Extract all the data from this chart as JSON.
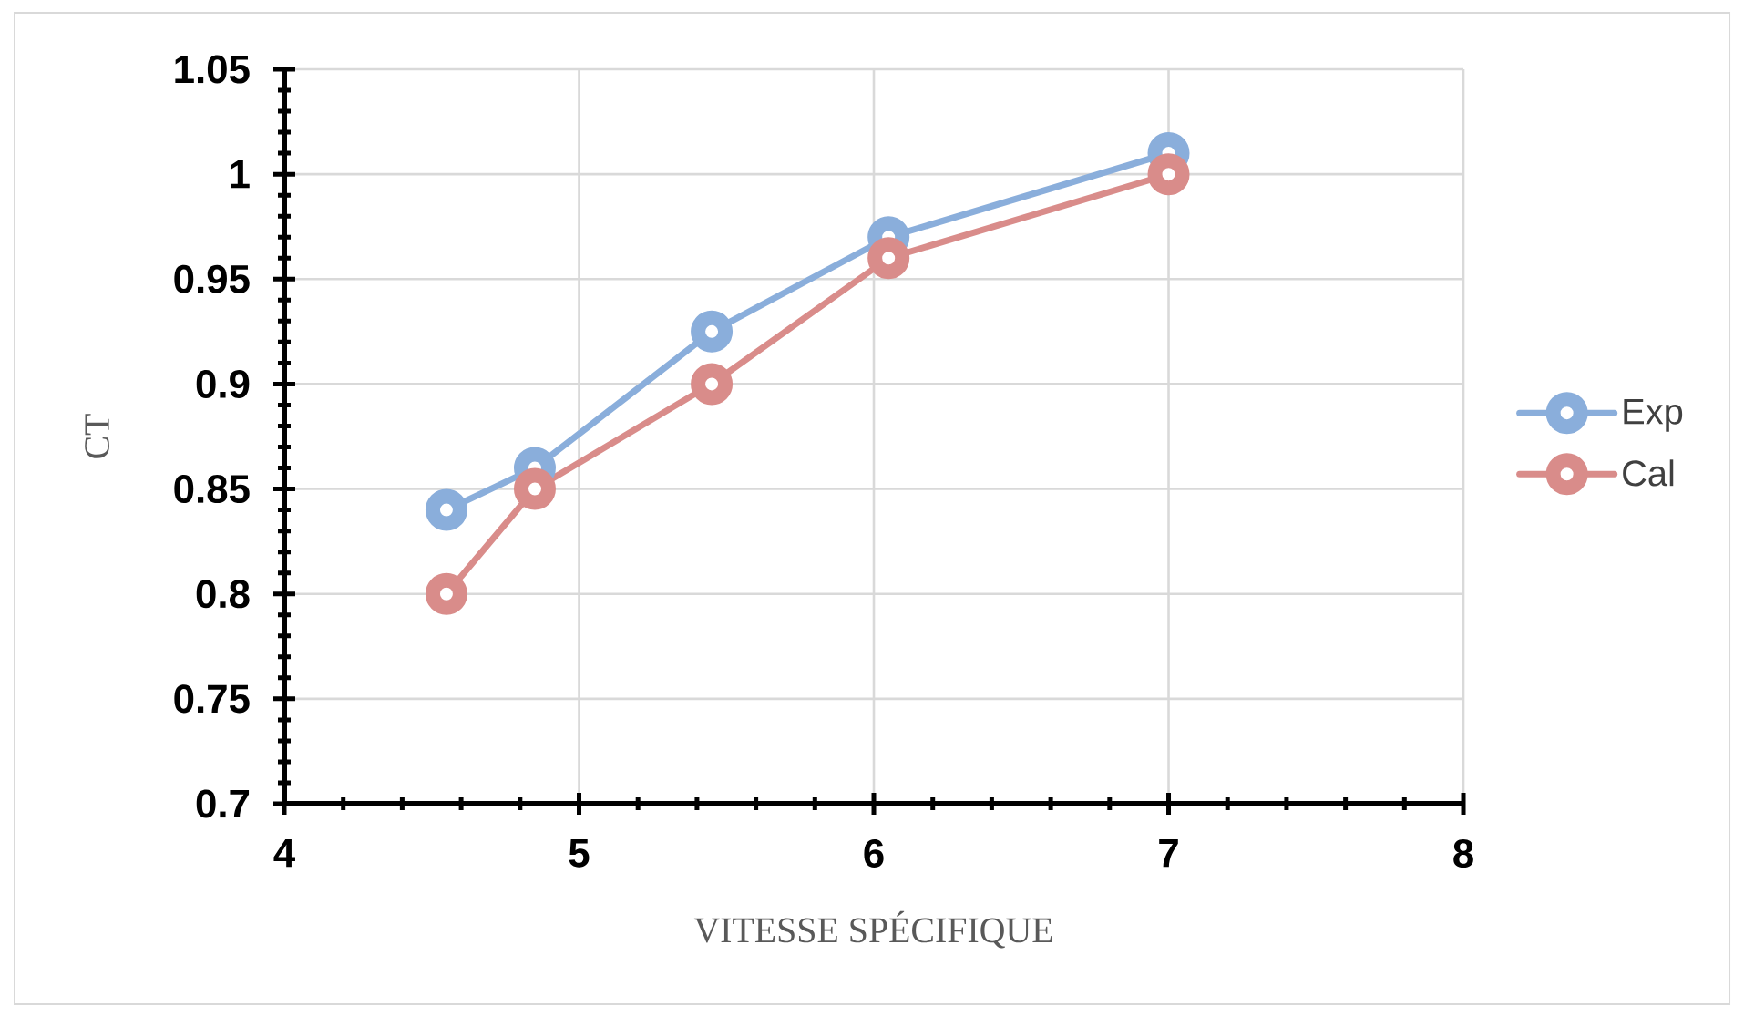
{
  "chart_data": {
    "type": "line",
    "xlabel": "VITESSE SPÉCIFIQUE",
    "ylabel": "CT",
    "xlim": [
      4,
      8
    ],
    "xticks": [
      4,
      5,
      6,
      7,
      8
    ],
    "ylim": [
      0.7,
      1.05
    ],
    "yticks": [
      0.7,
      0.75,
      0.8,
      0.85,
      0.9,
      0.95,
      1,
      1.05
    ],
    "grid": true,
    "legend": "right",
    "marker": "circle",
    "line_style": "solid",
    "series": [
      {
        "name": "Exp",
        "color": "#8aaedb",
        "x": [
          4.55,
          4.85,
          5.45,
          6.05,
          7
        ],
        "values": [
          0.84,
          0.86,
          0.925,
          0.97,
          1.01
        ]
      },
      {
        "name": "Cal",
        "color": "#d98c8a",
        "x": [
          4.55,
          4.85,
          5.45,
          6.05,
          7
        ],
        "values": [
          0.8,
          0.85,
          0.9,
          0.96,
          1.0
        ]
      }
    ]
  }
}
